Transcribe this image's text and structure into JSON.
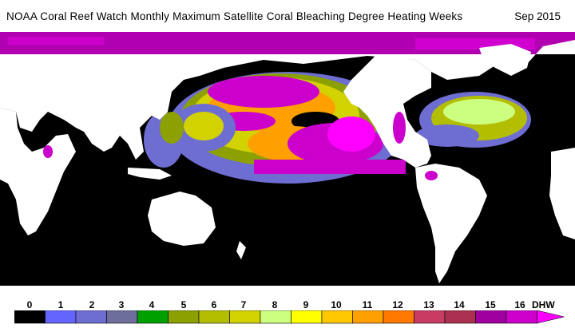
{
  "header": {
    "title": "NOAA Coral Reef Watch Monthly Maximum Satellite Coral Bleaching Degree Heating Weeks",
    "date": "Sep 2015"
  },
  "legend": {
    "unit": "DHW",
    "ticks": [
      "0",
      "1",
      "2",
      "3",
      "4",
      "5",
      "6",
      "7",
      "8",
      "9",
      "10",
      "11",
      "12",
      "13",
      "14",
      "15",
      "16"
    ],
    "colors": [
      "#000000",
      "#6464ff",
      "#6e6ed2",
      "#6e6e9c",
      "#00a000",
      "#8ca000",
      "#b4be00",
      "#d2d200",
      "#ccff80",
      "#ffff00",
      "#ffc800",
      "#ffa000",
      "#ff7800",
      "#c83c64",
      "#aa3250",
      "#a000a0",
      "#cc00cc",
      "#ff00ff"
    ]
  },
  "map": {
    "background_color": "#000000",
    "land_color": "#ffffff",
    "hotspot_color": "#d200d2"
  }
}
